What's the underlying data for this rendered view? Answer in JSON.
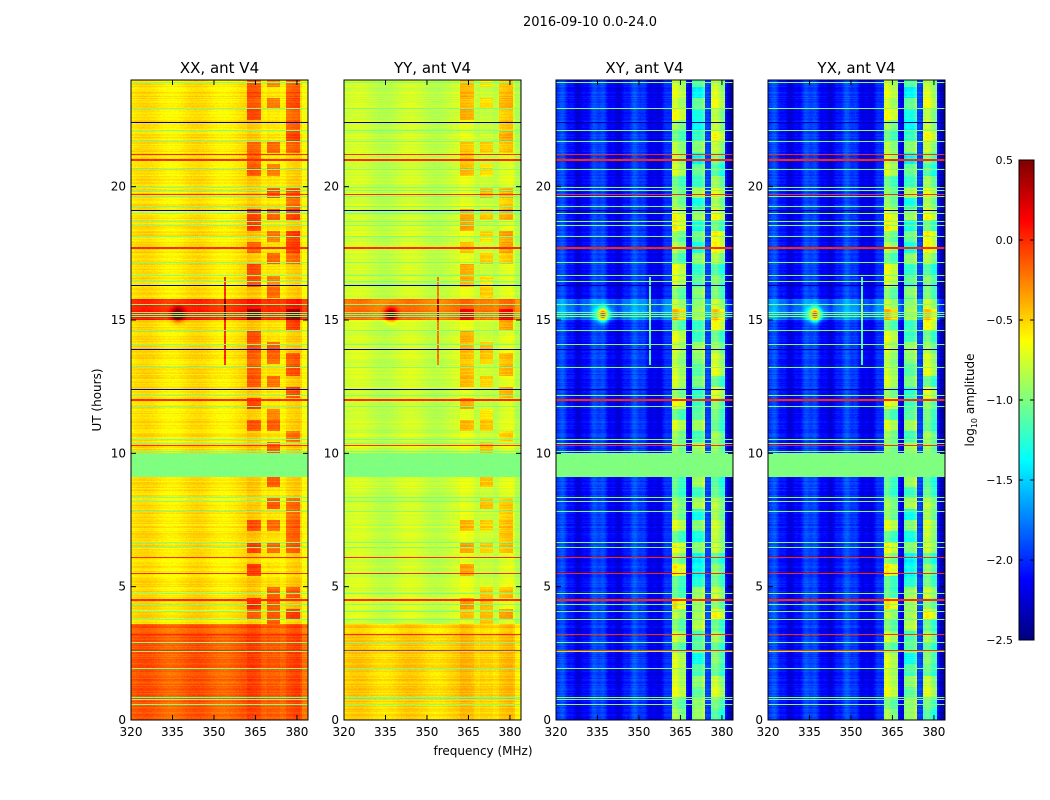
{
  "chart_data": {
    "type": "heatmap",
    "suptitle": "2016-09-10 0.0-24.0",
    "xlabel": "frequency (MHz)",
    "ylabel": "UT (hours)",
    "xlim": [
      320,
      384
    ],
    "ylim": [
      0,
      24
    ],
    "xticks": [
      320,
      335,
      350,
      365,
      380
    ],
    "yticks": [
      0,
      5,
      10,
      15,
      20
    ],
    "colorbar": {
      "label": "log10 amplitude",
      "label_main": "log",
      "label_sub": "10",
      "label_rest": " amplitude",
      "colormap": "jet",
      "range": [
        -2.5,
        0.5
      ],
      "ticks": [
        "0.5",
        "0.0",
        "−0.5",
        "−1.0",
        "−1.5",
        "−2.0",
        "−2.5"
      ],
      "tick_values": [
        0.5,
        0.0,
        -0.5,
        -1.0,
        -1.5,
        -2.0,
        -2.5
      ]
    },
    "panels": [
      {
        "title": "XX, ant V4",
        "base_early": -0.15,
        "base_late": -0.55,
        "rfi_boost": 0.3,
        "cross": false
      },
      {
        "title": "YY, ant V4",
        "base_early": -0.5,
        "base_late": -0.78,
        "rfi_boost": 0.25,
        "cross": false
      },
      {
        "title": "XY, ant V4",
        "base_early": -2.05,
        "base_late": -2.05,
        "rfi_boost": 1.1,
        "cross": true
      },
      {
        "title": "YX, ant V4",
        "base_early": -2.05,
        "base_late": -2.05,
        "rfi_boost": 1.1,
        "cross": true
      }
    ],
    "features": {
      "early_period_end_hours": 3.6,
      "flagged_block_hours": [
        9.1,
        10.0
      ],
      "flagged_value": -1.0,
      "burst_hours": [
        15.0,
        15.8
      ],
      "burst_center": {
        "freq_mhz": 337,
        "ut_hours": 15.2
      },
      "rfi_bands_mhz": [
        [
          362,
          367
        ],
        [
          369,
          374
        ],
        [
          376,
          381
        ]
      ],
      "strong_rows_hours": [
        2.6,
        3.2,
        4.5,
        5.5,
        6.1,
        10.3,
        12.0,
        17.7,
        19.7,
        21.0,
        21.2
      ],
      "dark_rows_hours": [
        12.4,
        13.9,
        16.3,
        19.1,
        22.4
      ]
    }
  }
}
